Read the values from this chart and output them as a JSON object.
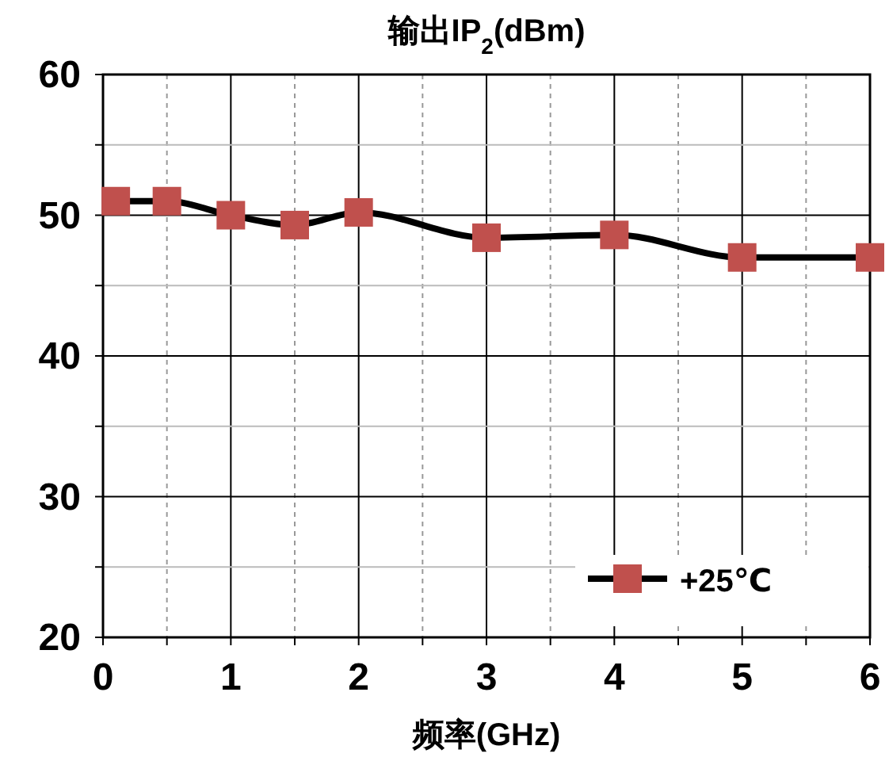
{
  "chart_data": {
    "type": "line",
    "title": "输出IP$_{2}$(dBm)",
    "xlabel": "频率(GHz)",
    "x": [
      0.1,
      0.5,
      1,
      1.5,
      2,
      3,
      4,
      5,
      6
    ],
    "series": [
      {
        "name": "+25℃",
        "color": "#c0504d",
        "values": [
          51.0,
          51.0,
          50.0,
          49.3,
          50.2,
          48.4,
          48.6,
          47.0,
          47.0
        ]
      }
    ],
    "xlim": [
      0,
      6
    ],
    "xticks": [
      0,
      {
        "value": 0.5,
        "label": null
      },
      1,
      {
        "value": 1.5,
        "label": null
      },
      2,
      {
        "value": 2.5,
        "label": null
      },
      3,
      {
        "value": 3.5,
        "label": null
      },
      4,
      {
        "value": 4.5,
        "label": null
      },
      5,
      {
        "value": 5.5,
        "label": null
      },
      6
    ],
    "ylim": [
      20,
      60
    ],
    "yticks": [
      20,
      {
        "value": 25,
        "label": null
      },
      30,
      {
        "value": 35,
        "label": null
      },
      40,
      {
        "value": 45,
        "label": null
      },
      50,
      {
        "value": 55,
        "label": null
      },
      60
    ],
    "grid": true,
    "legend": "bottom right",
    "marker": "square",
    "line_style": "solid"
  }
}
